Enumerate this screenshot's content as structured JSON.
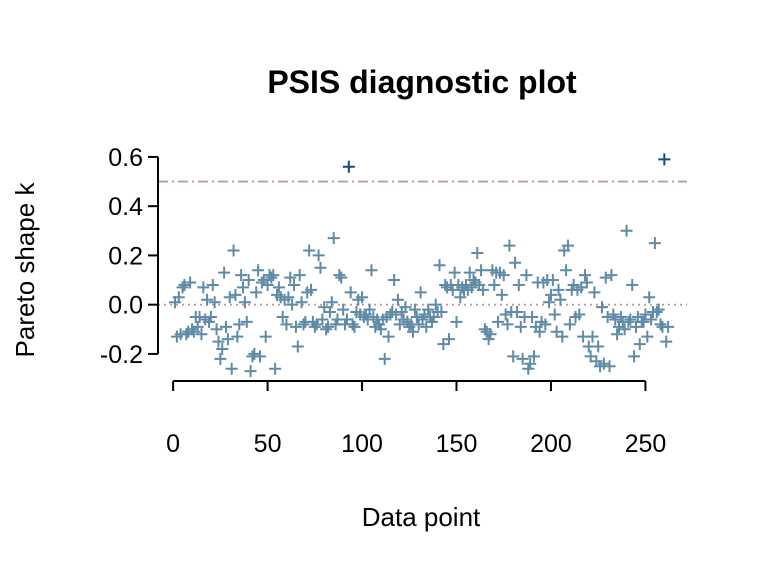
{
  "chart_data": {
    "type": "scatter",
    "title": "PSIS diagnostic plot",
    "xlabel": "Data point",
    "ylabel": "Pareto shape k",
    "xlim": [
      -8,
      272
    ],
    "ylim": [
      -0.31,
      0.62
    ],
    "xticks": [
      0,
      50,
      100,
      150,
      200,
      250
    ],
    "yticks": [
      -0.2,
      0.0,
      0.2,
      0.4,
      0.6
    ],
    "xtick_labels": [
      "0",
      "50",
      "100",
      "150",
      "200",
      "250"
    ],
    "ytick_labels": [
      "-0.2",
      "0.0",
      "0.2",
      "0.4",
      "0.6"
    ],
    "grid": false,
    "marker": "plus",
    "reference_lines": [
      {
        "y": 0.5,
        "style": "dash-dot",
        "color": "#c4999a"
      },
      {
        "y": 0.0,
        "style": "dotted",
        "color": "#c4999a"
      }
    ],
    "colors": {
      "normal": "#5f8ba6",
      "high": "#0f4c81"
    },
    "points": [
      [
        1,
        0.01
      ],
      [
        2,
        -0.13
      ],
      [
        3,
        0.03
      ],
      [
        4,
        -0.12
      ],
      [
        5,
        0.07
      ],
      [
        6,
        0.08
      ],
      [
        7,
        -0.12
      ],
      [
        8,
        -0.11
      ],
      [
        9,
        0.09
      ],
      [
        10,
        -0.1
      ],
      [
        11,
        -0.11
      ],
      [
        12,
        -0.05
      ],
      [
        13,
        -0.09
      ],
      [
        14,
        -0.05
      ],
      [
        15,
        -0.12
      ],
      [
        16,
        0.07
      ],
      [
        17,
        -0.06
      ],
      [
        18,
        0.02
      ],
      [
        19,
        -0.07
      ],
      [
        20,
        -0.05
      ],
      [
        21,
        0.08
      ],
      [
        22,
        0.01
      ],
      [
        23,
        -0.1
      ],
      [
        24,
        -0.15
      ],
      [
        25,
        -0.22
      ],
      [
        26,
        -0.18
      ],
      [
        27,
        0.13
      ],
      [
        28,
        -0.09
      ],
      [
        29,
        -0.14
      ],
      [
        30,
        0.03
      ],
      [
        31,
        -0.26
      ],
      [
        32,
        0.22
      ],
      [
        33,
        0.04
      ],
      [
        34,
        -0.13
      ],
      [
        35,
        -0.08
      ],
      [
        36,
        0.12
      ],
      [
        37,
        0.07
      ],
      [
        38,
        0.01
      ],
      [
        39,
        -0.07
      ],
      [
        40,
        0.1
      ],
      [
        41,
        -0.27
      ],
      [
        42,
        -0.21
      ],
      [
        43,
        -0.2
      ],
      [
        44,
        0.05
      ],
      [
        45,
        0.14
      ],
      [
        46,
        -0.21
      ],
      [
        47,
        0.09
      ],
      [
        48,
        0.1
      ],
      [
        49,
        -0.13
      ],
      [
        50,
        0.08
      ],
      [
        51,
        0.12
      ],
      [
        52,
        0.11
      ],
      [
        53,
        0.12
      ],
      [
        54,
        -0.26
      ],
      [
        55,
        0.04
      ],
      [
        56,
        0.07
      ],
      [
        57,
        0.03
      ],
      [
        58,
        -0.05
      ],
      [
        59,
        0.02
      ],
      [
        60,
        -0.08
      ],
      [
        61,
        0.03
      ],
      [
        62,
        0.11
      ],
      [
        63,
        0.0
      ],
      [
        64,
        0.08
      ],
      [
        65,
        -0.09
      ],
      [
        66,
        -0.17
      ],
      [
        67,
        0.12
      ],
      [
        68,
        0.01
      ],
      [
        69,
        -0.08
      ],
      [
        70,
        -0.07
      ],
      [
        71,
        0.05
      ],
      [
        72,
        0.22
      ],
      [
        73,
        0.06
      ],
      [
        74,
        -0.07
      ],
      [
        75,
        -0.09
      ],
      [
        76,
        -0.08
      ],
      [
        77,
        0.2
      ],
      [
        78,
        0.15
      ],
      [
        79,
        -0.06
      ],
      [
        80,
        -0.01
      ],
      [
        81,
        -0.1
      ],
      [
        82,
        -0.09
      ],
      [
        83,
        -0.03
      ],
      [
        84,
        0.01
      ],
      [
        85,
        0.27
      ],
      [
        86,
        -0.08
      ],
      [
        87,
        -0.06
      ],
      [
        88,
        0.12
      ],
      [
        89,
        0.11
      ],
      [
        90,
        -0.02
      ],
      [
        91,
        -0.08
      ],
      [
        92,
        -0.06
      ],
      [
        93,
        0.56
      ],
      [
        94,
        0.05
      ],
      [
        95,
        -0.08
      ],
      [
        96,
        -0.09
      ],
      [
        97,
        -0.03
      ],
      [
        98,
        0.02
      ],
      [
        99,
        -0.04
      ],
      [
        100,
        0.03
      ],
      [
        101,
        -0.05
      ],
      [
        102,
        -0.04
      ],
      [
        103,
        -0.06
      ],
      [
        104,
        -0.02
      ],
      [
        105,
        0.14
      ],
      [
        106,
        -0.05
      ],
      [
        107,
        -0.09
      ],
      [
        108,
        -0.06
      ],
      [
        109,
        -0.08
      ],
      [
        110,
        -0.1
      ],
      [
        111,
        -0.06
      ],
      [
        112,
        -0.22
      ],
      [
        113,
        -0.05
      ],
      [
        114,
        -0.13
      ],
      [
        115,
        -0.04
      ],
      [
        116,
        -0.03
      ],
      [
        117,
        0.1
      ],
      [
        118,
        -0.04
      ],
      [
        119,
        0.02
      ],
      [
        120,
        -0.08
      ],
      [
        121,
        -0.03
      ],
      [
        122,
        -0.06
      ],
      [
        123,
        -0.01
      ],
      [
        124,
        -0.07
      ],
      [
        125,
        -0.09
      ],
      [
        126,
        -0.08
      ],
      [
        127,
        -0.11
      ],
      [
        128,
        -0.02
      ],
      [
        129,
        -0.05
      ],
      [
        130,
        -0.08
      ],
      [
        131,
        0.05
      ],
      [
        132,
        -0.06
      ],
      [
        133,
        -0.04
      ],
      [
        134,
        -0.09
      ],
      [
        135,
        -0.02
      ],
      [
        136,
        -0.05
      ],
      [
        137,
        -0.07
      ],
      [
        138,
        -0.05
      ],
      [
        139,
        0.0
      ],
      [
        140,
        -0.03
      ],
      [
        141,
        0.16
      ],
      [
        142,
        -0.03
      ],
      [
        143,
        -0.16
      ],
      [
        144,
        0.08
      ],
      [
        145,
        0.07
      ],
      [
        146,
        -0.14
      ],
      [
        147,
        0.08
      ],
      [
        148,
        0.06
      ],
      [
        149,
        0.13
      ],
      [
        150,
        -0.07
      ],
      [
        151,
        0.08
      ],
      [
        152,
        0.03
      ],
      [
        153,
        0.07
      ],
      [
        154,
        0.06
      ],
      [
        155,
        0.08
      ],
      [
        156,
        0.06
      ],
      [
        157,
        0.13
      ],
      [
        158,
        0.07
      ],
      [
        159,
        0.1
      ],
      [
        160,
        0.09
      ],
      [
        161,
        0.21
      ],
      [
        162,
        0.08
      ],
      [
        163,
        0.14
      ],
      [
        164,
        0.06
      ],
      [
        165,
        -0.1
      ],
      [
        166,
        -0.11
      ],
      [
        167,
        -0.14
      ],
      [
        168,
        -0.12
      ],
      [
        169,
        0.14
      ],
      [
        170,
        0.08
      ],
      [
        171,
        0.13
      ],
      [
        172,
        -0.07
      ],
      [
        173,
        0.13
      ],
      [
        174,
        0.04
      ],
      [
        175,
        0.12
      ],
      [
        176,
        -0.04
      ],
      [
        177,
        -0.08
      ],
      [
        178,
        0.24
      ],
      [
        179,
        -0.03
      ],
      [
        180,
        -0.21
      ],
      [
        181,
        0.17
      ],
      [
        182,
        -0.03
      ],
      [
        183,
        0.08
      ],
      [
        184,
        -0.09
      ],
      [
        185,
        -0.22
      ],
      [
        186,
        -0.05
      ],
      [
        187,
        0.12
      ],
      [
        188,
        -0.26
      ],
      [
        189,
        -0.24
      ],
      [
        190,
        -0.05
      ],
      [
        191,
        -0.21
      ],
      [
        192,
        -0.09
      ],
      [
        193,
        0.09
      ],
      [
        194,
        -0.11
      ],
      [
        195,
        -0.07
      ],
      [
        196,
        0.09
      ],
      [
        197,
        -0.08
      ],
      [
        198,
        0.1
      ],
      [
        199,
        0.01
      ],
      [
        200,
        0.04
      ],
      [
        201,
        0.1
      ],
      [
        202,
        -0.04
      ],
      [
        203,
        -0.11
      ],
      [
        204,
        0.06
      ],
      [
        205,
        0.02
      ],
      [
        206,
        -0.13
      ],
      [
        207,
        0.22
      ],
      [
        208,
        0.14
      ],
      [
        209,
        0.24
      ],
      [
        210,
        -0.08
      ],
      [
        211,
        0.06
      ],
      [
        212,
        0.08
      ],
      [
        213,
        -0.05
      ],
      [
        214,
        0.06
      ],
      [
        215,
        -0.04
      ],
      [
        216,
        0.07
      ],
      [
        217,
        -0.13
      ],
      [
        218,
        0.12
      ],
      [
        219,
        0.09
      ],
      [
        220,
        -0.17
      ],
      [
        221,
        -0.21
      ],
      [
        222,
        -0.13
      ],
      [
        223,
        0.05
      ],
      [
        224,
        -0.23
      ],
      [
        225,
        -0.17
      ],
      [
        226,
        -0.25
      ],
      [
        227,
        -0.01
      ],
      [
        228,
        -0.24
      ],
      [
        229,
        0.11
      ],
      [
        230,
        -0.05
      ],
      [
        231,
        -0.25
      ],
      [
        232,
        0.12
      ],
      [
        233,
        -0.04
      ],
      [
        234,
        -0.06
      ],
      [
        235,
        -0.12
      ],
      [
        236,
        -0.09
      ],
      [
        237,
        -0.05
      ],
      [
        238,
        -0.07
      ],
      [
        239,
        -0.1
      ],
      [
        240,
        0.3
      ],
      [
        241,
        -0.07
      ],
      [
        242,
        -0.06
      ],
      [
        243,
        0.08
      ],
      [
        244,
        -0.21
      ],
      [
        245,
        -0.09
      ],
      [
        246,
        -0.05
      ],
      [
        247,
        -0.16
      ],
      [
        248,
        -0.07
      ],
      [
        249,
        -0.07
      ],
      [
        250,
        -0.04
      ],
      [
        251,
        -0.13
      ],
      [
        252,
        0.03
      ],
      [
        253,
        -0.06
      ],
      [
        254,
        -0.03
      ],
      [
        255,
        0.25
      ],
      [
        256,
        -0.03
      ],
      [
        257,
        -0.02
      ],
      [
        258,
        -0.08
      ],
      [
        259,
        -0.09
      ],
      [
        260,
        0.59
      ],
      [
        261,
        -0.15
      ],
      [
        262,
        -0.09
      ]
    ]
  }
}
